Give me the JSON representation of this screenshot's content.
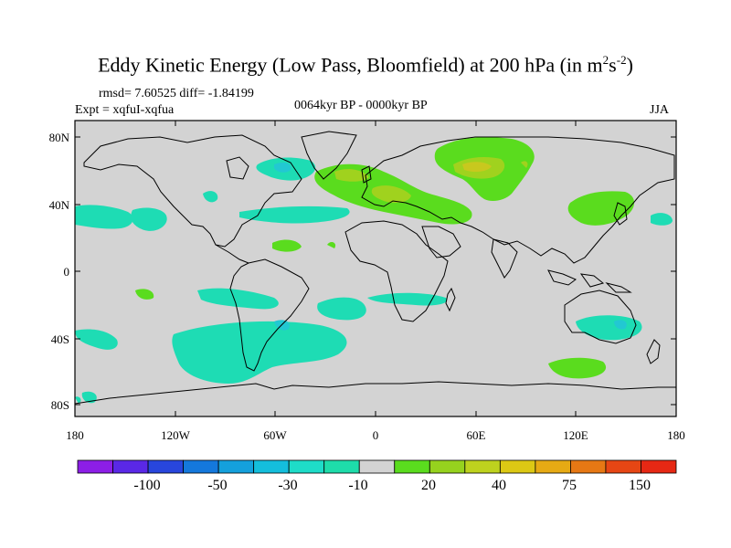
{
  "title": {
    "main": "Eddy Kinetic Energy (Low Pass, Bloomfield) at 200 hPa (in m",
    "sup1": "2",
    "mid": "s",
    "sup2": "-2",
    "end": ")"
  },
  "stats": "rmsd= 7.60525 diff= -1.84199",
  "expt": "Expt = xqfuI-xqfua",
  "period": "0064kyr BP - 0000kyr BP",
  "season": "JJA",
  "colors": {
    "land_bg": "#d3d3d3",
    "neg_light": "#1adcb4",
    "neg_mid": "#1ec8d2",
    "pos_light": "#5adc1e",
    "pos_mid": "#a0d21e",
    "pos_high": "#c8c81e"
  },
  "map": {
    "lat_labels": [
      "80N",
      "40N",
      "0",
      "40S",
      "80S"
    ],
    "lon_labels": [
      "180",
      "120W",
      "60W",
      "0",
      "60E",
      "120E",
      "180"
    ]
  },
  "colorbar": {
    "colors": [
      "#8c1ee6",
      "#5a28e6",
      "#2846dc",
      "#1478dc",
      "#14a0dc",
      "#14bedc",
      "#1edcc8",
      "#1edcaa",
      "#d3d3d3",
      "#5adc1e",
      "#96d21e",
      "#bed21e",
      "#dcc814",
      "#e6aa14",
      "#e67814",
      "#e64614",
      "#e62814"
    ],
    "labels": [
      "-100",
      "-50",
      "-30",
      "-10",
      "20",
      "40",
      "75",
      "150"
    ]
  }
}
